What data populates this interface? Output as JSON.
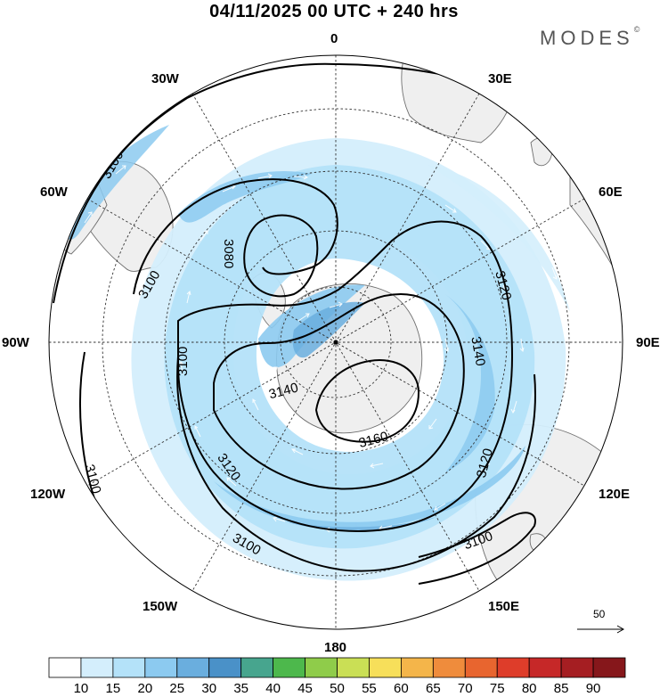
{
  "title": "04/11/2025  00 UTC  + 240 hrs",
  "brand": "MODES",
  "brand_mark": "©",
  "longitude_labels": {
    "lon_0": "0",
    "lon_30e": "30E",
    "lon_60e": "60E",
    "lon_90e": "90E",
    "lon_120e": "120E",
    "lon_150e": "150E",
    "lon_180": "180",
    "lon_150w": "150W",
    "lon_120w": "120W",
    "lon_90w": "90W",
    "lon_60w": "60W",
    "lon_30w": "30W"
  },
  "contour_labels": {
    "c3100_a": "3100",
    "c3100_b": "3100",
    "c3100_c": "3100",
    "c3100_d": "3100",
    "c3100_e": "3100",
    "c3100_f": "3100",
    "c3080": "3080",
    "c3120_a": "3120",
    "c3120_b": "3120",
    "c3120_c": "3120",
    "c3140_a": "3140",
    "c3140_b": "3140",
    "c3160": "3160"
  },
  "reference_vector": "50",
  "colorbar": {
    "labels": [
      "10",
      "15",
      "20",
      "25",
      "30",
      "35",
      "40",
      "45",
      "50",
      "55",
      "60",
      "65",
      "70",
      "75",
      "80",
      "85",
      "90"
    ],
    "colors": [
      "#ffffff",
      "#d4eefc",
      "#b4e2f9",
      "#8ccaf0",
      "#6aaede",
      "#4a91c8",
      "#47a58e",
      "#4db84c",
      "#8fcc4a",
      "#cadf55",
      "#f7df5a",
      "#f4b54a",
      "#ef8c3c",
      "#e8652f",
      "#de3d2a",
      "#c62828",
      "#a51e22",
      "#86171b"
    ]
  },
  "chart_data": {
    "type": "polar_stereographic_map",
    "hemisphere": "south",
    "field": "geopotential height contours with wind speed shading and wind vectors",
    "contour_levels": [
      3080,
      3100,
      3120,
      3140,
      3160
    ],
    "shading_levels": [
      10,
      15,
      20,
      25,
      30,
      35,
      40,
      45,
      50,
      55,
      60,
      65,
      70,
      75,
      80,
      85,
      90
    ],
    "reference_vector": 50,
    "valid": "04/11/2025 00 UTC + 240 hrs"
  }
}
